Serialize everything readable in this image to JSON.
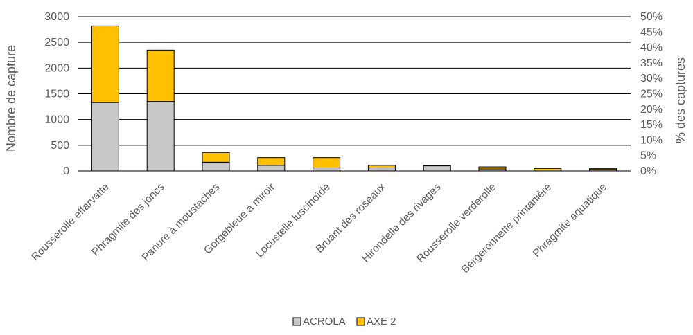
{
  "chart_data": {
    "type": "bar",
    "stacked": true,
    "categories": [
      "Rousserolle effarvatte",
      "Phragmite des joncs",
      "Panure à moustaches",
      "Gorgebleue à miroir",
      "Locustelle luscinoïde",
      "Bruant des roseaux",
      "Hirondelle des rivages",
      "Rousserolle verderolle",
      "Bergeronnette printanière",
      "Phragmite aquatique"
    ],
    "series": [
      {
        "name": "ACROLA",
        "color": "#c8c8c8",
        "values": [
          1330,
          1350,
          170,
          110,
          60,
          60,
          100,
          40,
          20,
          30
        ]
      },
      {
        "name": "AXE 2",
        "color": "#ffc000",
        "values": [
          1490,
          1000,
          190,
          150,
          200,
          50,
          10,
          40,
          30,
          20
        ]
      }
    ],
    "xlabel": "",
    "ylabel": "Nombre de capture",
    "y2label": "% des captures",
    "ylim": [
      0,
      3000
    ],
    "y_ticks": [
      "0",
      "500",
      "1000",
      "1500",
      "2000",
      "2500",
      "3000"
    ],
    "y2lim": [
      0,
      50
    ],
    "y2_ticks": [
      "0%",
      "5%",
      "10%",
      "15%",
      "20%",
      "25%",
      "30%",
      "35%",
      "40%",
      "45%",
      "50%"
    ],
    "grid": true,
    "legend_position": "bottom"
  }
}
